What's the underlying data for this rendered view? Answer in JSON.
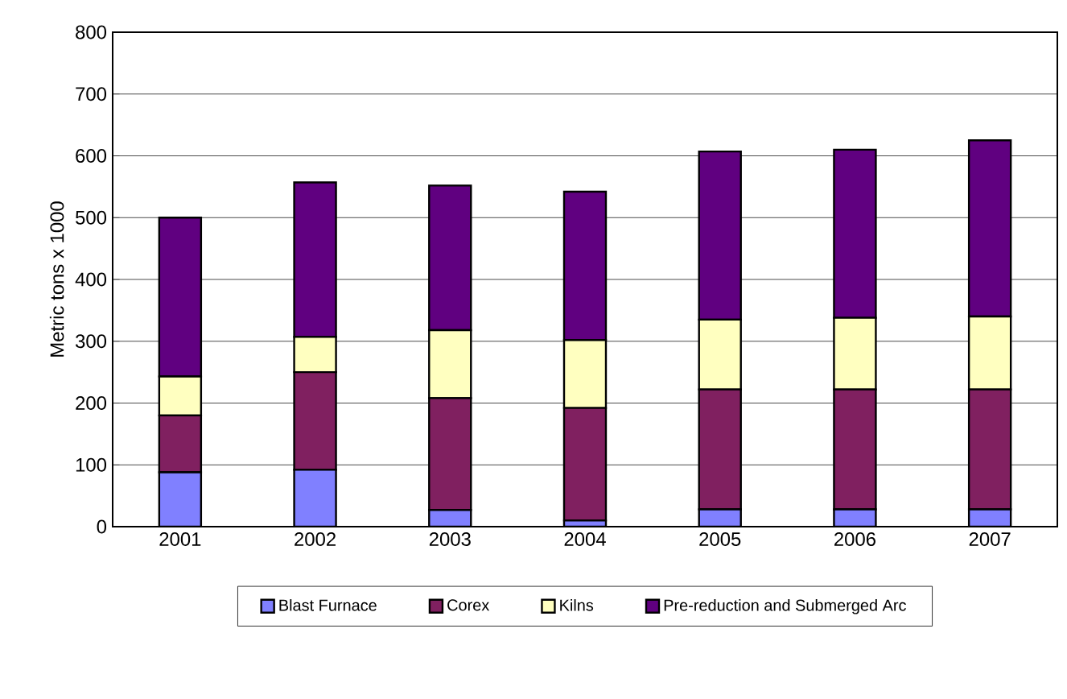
{
  "chart_data": {
    "type": "bar",
    "stacked": true,
    "ylabel": "Metric tons x 1000",
    "categories": [
      "2001",
      "2002",
      "2003",
      "2004",
      "2005",
      "2006",
      "2007"
    ],
    "series": [
      {
        "name": "Blast Furnace",
        "color": "#8080ff",
        "values": [
          88,
          92,
          27,
          10,
          28,
          28,
          28
        ]
      },
      {
        "name": "Corex",
        "color": "#802060",
        "values": [
          92,
          158,
          181,
          182,
          194,
          194,
          194
        ]
      },
      {
        "name": "Kilns",
        "color": "#ffffc0",
        "values": [
          63,
          57,
          110,
          110,
          113,
          116,
          118
        ]
      },
      {
        "name": "Pre-reduction and Submerged Arc",
        "color": "#600080",
        "values": [
          257,
          250,
          234,
          240,
          272,
          272,
          285
        ]
      }
    ],
    "ylim": [
      0,
      800
    ],
    "yticks": [
      0,
      100,
      200,
      300,
      400,
      500,
      600,
      700,
      800
    ],
    "grid": "y",
    "legend": "bottom"
  }
}
